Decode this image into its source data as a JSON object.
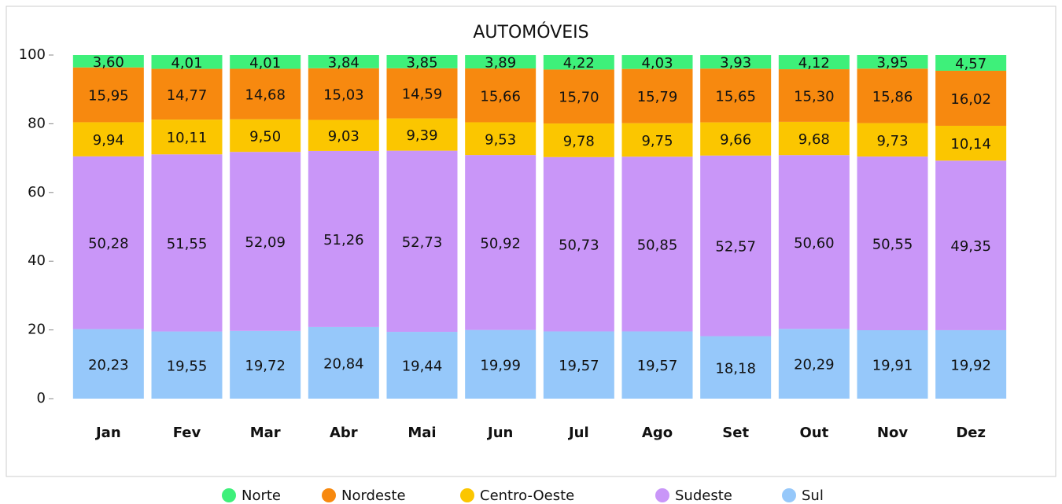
{
  "chart_data": {
    "type": "stacked_bar",
    "title": "AUTOMÓVEIS",
    "categories": [
      "Jan",
      "Fev",
      "Mar",
      "Abr",
      "Mai",
      "Jun",
      "Jul",
      "Ago",
      "Set",
      "Out",
      "Nov",
      "Dez"
    ],
    "ylim": [
      0,
      100
    ],
    "yticks": [
      0,
      20,
      40,
      60,
      80,
      100
    ],
    "legend": "bottom",
    "series": [
      {
        "name": "Norte",
        "color": "#3ef07a",
        "values": [
          3.6,
          4.01,
          4.01,
          3.84,
          3.85,
          3.89,
          4.22,
          4.03,
          3.93,
          4.12,
          3.95,
          4.57
        ],
        "value_labels": [
          "3,60",
          "4,01",
          "4,01",
          "3,84",
          "3,85",
          "3,89",
          "4,22",
          "4,03",
          "3,93",
          "4,12",
          "3,95",
          "4,57"
        ]
      },
      {
        "name": "Nordeste",
        "color": "#f7890f",
        "values": [
          15.95,
          14.77,
          14.68,
          15.03,
          14.59,
          15.66,
          15.7,
          15.79,
          15.65,
          15.3,
          15.86,
          16.02
        ],
        "value_labels": [
          "15,95",
          "14,77",
          "14,68",
          "15,03",
          "14,59",
          "15,66",
          "15,70",
          "15,79",
          "15,65",
          "15,30",
          "15,86",
          "16,02"
        ]
      },
      {
        "name": "Centro-Oeste",
        "color": "#fbc600",
        "values": [
          9.94,
          10.11,
          9.5,
          9.03,
          9.39,
          9.53,
          9.78,
          9.75,
          9.66,
          9.68,
          9.73,
          10.14
        ],
        "value_labels": [
          "9,94",
          "10,11",
          "9,50",
          "9,03",
          "9,39",
          "9,53",
          "9,78",
          "9,75",
          "9,66",
          "9,68",
          "9,73",
          "10,14"
        ]
      },
      {
        "name": "Sudeste",
        "color": "#c996f8",
        "values": [
          50.28,
          51.55,
          52.09,
          51.26,
          52.73,
          50.92,
          50.73,
          50.85,
          52.57,
          50.6,
          50.55,
          49.35
        ],
        "value_labels": [
          "50,28",
          "51,55",
          "52,09",
          "51,26",
          "52,73",
          "50,92",
          "50,73",
          "50,85",
          "52,57",
          "50,60",
          "50,55",
          "49,35"
        ]
      },
      {
        "name": "Sul",
        "color": "#96c8fa",
        "values": [
          20.23,
          19.55,
          19.72,
          20.84,
          19.44,
          19.99,
          19.57,
          19.57,
          18.18,
          20.29,
          19.91,
          19.92
        ],
        "value_labels": [
          "20,23",
          "19,55",
          "19,72",
          "20,84",
          "19,44",
          "19,99",
          "19,57",
          "19,57",
          "18,18",
          "20,29",
          "19,91",
          "19,92"
        ]
      }
    ]
  }
}
